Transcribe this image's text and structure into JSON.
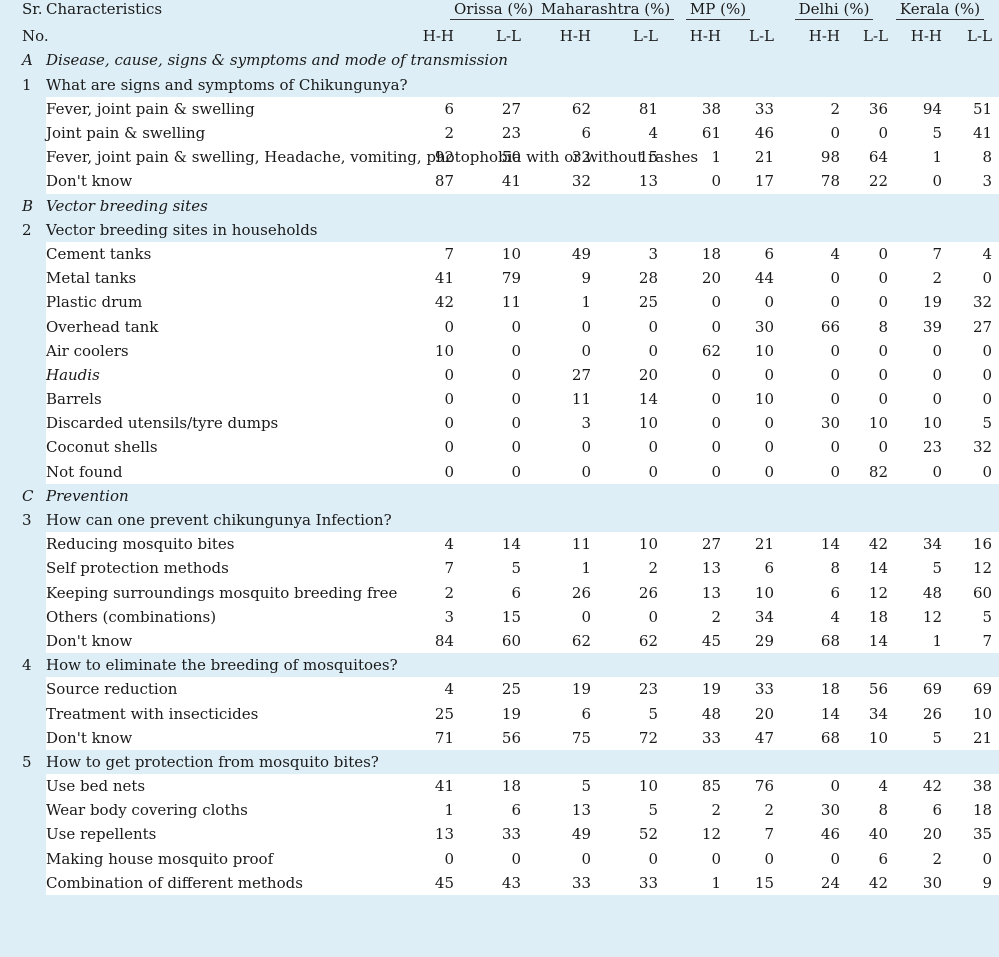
{
  "header": {
    "sr": "Sr.",
    "no": "No.",
    "characteristics": "Characteristics",
    "states": [
      "Orissa (%)",
      "Maharashtra (%)",
      "MP (%)",
      "Delhi (%)",
      "Kerala (%)"
    ],
    "hh": "H-H",
    "ll": "L-L"
  },
  "sections": [
    {
      "letter": "A",
      "title": "Disease, cause, signs & symptoms and mode of transmission",
      "questions": [
        {
          "num": "1",
          "text": "What are signs and symptoms of Chikungunya?",
          "rows": [
            {
              "label": "Fever, joint pain & swelling",
              "values": [
                "6",
                "27",
                "62",
                "81",
                "38",
                "33",
                "2",
                "36",
                "94",
                "51"
              ]
            },
            {
              "label": "Joint pain & swelling",
              "values": [
                "2",
                "23",
                "6",
                "4",
                "61",
                "46",
                "0",
                "0",
                "5",
                "41"
              ]
            },
            {
              "label": "Fever, joint pain & swelling, Headache, vomiting, photophobia with or without rashes",
              "values": [
                "92",
                "50",
                "32",
                "15",
                "1",
                "21",
                "98",
                "64",
                "1",
                "8"
              ]
            },
            {
              "label": "Don't know",
              "values": [
                "87",
                "41",
                "32",
                "13",
                "0",
                "17",
                "78",
                "22",
                "0",
                "3"
              ]
            }
          ]
        }
      ]
    },
    {
      "letter": "B",
      "title": "Vector breeding sites",
      "questions": [
        {
          "num": "2",
          "text": "Vector breeding sites in households",
          "rows": [
            {
              "label": "Cement tanks",
              "values": [
                "7",
                "10",
                "49",
                "3",
                "18",
                "6",
                "4",
                "0",
                "7",
                "4"
              ]
            },
            {
              "label": "Metal tanks",
              "values": [
                "41",
                "79",
                "9",
                "28",
                "20",
                "44",
                "0",
                "0",
                "2",
                "0"
              ]
            },
            {
              "label": "Plastic drum",
              "values": [
                "42",
                "11",
                "1",
                "25",
                "0",
                "0",
                "0",
                "0",
                "19",
                "32"
              ]
            },
            {
              "label": "Overhead tank",
              "values": [
                "0",
                "0",
                "0",
                "0",
                "0",
                "30",
                "66",
                "8",
                "39",
                "27"
              ]
            },
            {
              "label": "Air coolers",
              "values": [
                "10",
                "0",
                "0",
                "0",
                "62",
                "10",
                "0",
                "0",
                "0",
                "0"
              ]
            },
            {
              "label": "Haudis",
              "italic": true,
              "values": [
                "0",
                "0",
                "27",
                "20",
                "0",
                "0",
                "0",
                "0",
                "0",
                "0"
              ]
            },
            {
              "label": "Barrels",
              "values": [
                "0",
                "0",
                "11",
                "14",
                "0",
                "10",
                "0",
                "0",
                "0",
                "0"
              ]
            },
            {
              "label": "Discarded utensils/tyre dumps",
              "values": [
                "0",
                "0",
                "3",
                "10",
                "0",
                "0",
                "30",
                "10",
                "10",
                "5"
              ]
            },
            {
              "label": "Coconut shells",
              "values": [
                "0",
                "0",
                "0",
                "0",
                "0",
                "0",
                "0",
                "0",
                "23",
                "32"
              ]
            },
            {
              "label": "Not found",
              "values": [
                "0",
                "0",
                "0",
                "0",
                "0",
                "0",
                "0",
                "82",
                "0",
                "0"
              ]
            }
          ]
        }
      ]
    },
    {
      "letter": "C",
      "title": "Prevention",
      "questions": [
        {
          "num": "3",
          "text": "How can one prevent chikungunya Infection?",
          "rows": [
            {
              "label": "Reducing mosquito bites",
              "values": [
                "4",
                "14",
                "11",
                "10",
                "27",
                "21",
                "14",
                "42",
                "34",
                "16"
              ]
            },
            {
              "label": "Self protection methods",
              "values": [
                "7",
                "5",
                "1",
                "2",
                "13",
                "6",
                "8",
                "14",
                "5",
                "12"
              ]
            },
            {
              "label": "Keeping surroundings mosquito breeding free",
              "values": [
                "2",
                "6",
                "26",
                "26",
                "13",
                "10",
                "6",
                "12",
                "48",
                "60"
              ]
            },
            {
              "label": "Others (combinations)",
              "values": [
                "3",
                "15",
                "0",
                "0",
                "2",
                "34",
                "4",
                "18",
                "12",
                "5"
              ]
            },
            {
              "label": "Don't know",
              "values": [
                "84",
                "60",
                "62",
                "62",
                "45",
                "29",
                "68",
                "14",
                "1",
                "7"
              ]
            }
          ]
        },
        {
          "num": "4",
          "text": "How to eliminate the breeding of mosquitoes?",
          "rows": [
            {
              "label": "Source reduction",
              "values": [
                "4",
                "25",
                "19",
                "23",
                "19",
                "33",
                "18",
                "56",
                "69",
                "69"
              ]
            },
            {
              "label": "Treatment with insecticides",
              "values": [
                "25",
                "19",
                "6",
                "5",
                "48",
                "20",
                "14",
                "34",
                "26",
                "10"
              ]
            },
            {
              "label": "Don't know",
              "values": [
                "71",
                "56",
                "75",
                "72",
                "33",
                "47",
                "68",
                "10",
                "5",
                "21"
              ]
            }
          ]
        },
        {
          "num": "5",
          "text": "How to get protection from mosquito bites?",
          "rows": [
            {
              "label": "Use bed nets",
              "values": [
                "41",
                "18",
                "5",
                "10",
                "85",
                "76",
                "0",
                "4",
                "42",
                "38"
              ]
            },
            {
              "label": "Wear body covering cloths",
              "values": [
                "1",
                "6",
                "13",
                "5",
                "2",
                "2",
                "30",
                "8",
                "6",
                "18"
              ]
            },
            {
              "label": "Use repellents",
              "values": [
                "13",
                "33",
                "49",
                "52",
                "12",
                "7",
                "46",
                "40",
                "20",
                "35"
              ]
            },
            {
              "label": "Making house mosquito proof",
              "values": [
                "0",
                "0",
                "0",
                "0",
                "0",
                "0",
                "0",
                "6",
                "2",
                "0"
              ]
            },
            {
              "label": "Combination of different methods",
              "values": [
                "45",
                "43",
                "33",
                "33",
                "1",
                "15",
                "24",
                "42",
                "30",
                "9"
              ]
            }
          ]
        }
      ]
    }
  ]
}
